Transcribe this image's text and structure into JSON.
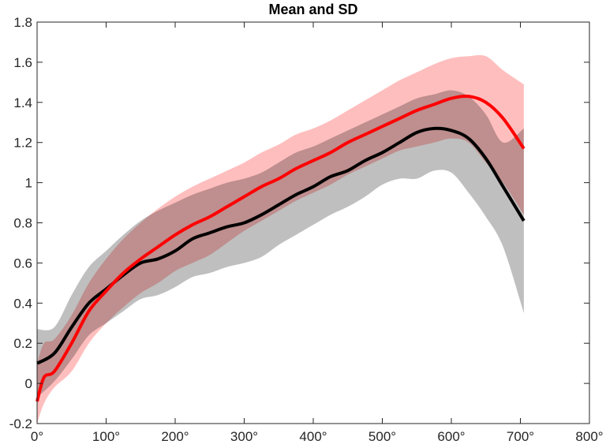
{
  "chart_data": {
    "type": "line",
    "title": "Mean and SD",
    "xlabel": "",
    "ylabel": "",
    "xlim": [
      0,
      800
    ],
    "ylim": [
      -0.2,
      1.8
    ],
    "xticks": [
      0,
      100,
      200,
      300,
      400,
      500,
      600,
      700,
      800
    ],
    "xtick_labels": [
      "0°",
      "100°",
      "200°",
      "300°",
      "400°",
      "500°",
      "600°",
      "700°",
      "800°"
    ],
    "yticks": [
      -0.2,
      0,
      0.2,
      0.4,
      0.6,
      0.8,
      1,
      1.2,
      1.4,
      1.6,
      1.8
    ],
    "ytick_labels": [
      "-0.2",
      "0",
      "0.2",
      "0.4",
      "0.6",
      "0.8",
      "1",
      "1.2",
      "1.4",
      "1.6",
      "1.8"
    ],
    "grid": false,
    "legend": "none",
    "series": [
      {
        "name": "black-mean",
        "color": "#000000",
        "band_color": "#bfbfbf",
        "x": [
          0,
          25,
          50,
          75,
          100,
          125,
          150,
          175,
          200,
          225,
          250,
          275,
          300,
          325,
          350,
          375,
          400,
          425,
          450,
          475,
          500,
          525,
          550,
          575,
          600,
          625,
          650,
          675,
          705
        ],
        "mean": [
          0.1,
          0.15,
          0.28,
          0.4,
          0.47,
          0.54,
          0.6,
          0.62,
          0.66,
          0.72,
          0.75,
          0.78,
          0.8,
          0.84,
          0.89,
          0.94,
          0.98,
          1.03,
          1.06,
          1.11,
          1.15,
          1.2,
          1.25,
          1.27,
          1.26,
          1.22,
          1.12,
          0.98,
          0.81
        ],
        "upper": [
          0.27,
          0.28,
          0.44,
          0.58,
          0.66,
          0.74,
          0.81,
          0.86,
          0.9,
          0.94,
          0.97,
          1.0,
          1.02,
          1.05,
          1.1,
          1.15,
          1.18,
          1.22,
          1.26,
          1.3,
          1.34,
          1.38,
          1.42,
          1.44,
          1.46,
          1.43,
          1.34,
          1.2,
          1.27
        ],
        "lower": [
          -0.07,
          0.01,
          0.12,
          0.24,
          0.3,
          0.36,
          0.42,
          0.44,
          0.48,
          0.53,
          0.55,
          0.58,
          0.6,
          0.63,
          0.69,
          0.74,
          0.79,
          0.84,
          0.88,
          0.93,
          0.99,
          1.02,
          1.02,
          1.06,
          1.05,
          0.95,
          0.83,
          0.68,
          0.35
        ]
      },
      {
        "name": "red-mean",
        "color": "#ff0000",
        "band_color": "#ffb3b3",
        "x": [
          0,
          10,
          25,
          50,
          75,
          100,
          125,
          150,
          175,
          200,
          225,
          250,
          275,
          300,
          325,
          350,
          375,
          400,
          425,
          450,
          475,
          500,
          525,
          550,
          575,
          600,
          625,
          650,
          675,
          705
        ],
        "mean": [
          -0.09,
          0.03,
          0.06,
          0.2,
          0.36,
          0.46,
          0.55,
          0.62,
          0.68,
          0.74,
          0.79,
          0.83,
          0.88,
          0.93,
          0.98,
          1.02,
          1.07,
          1.11,
          1.15,
          1.2,
          1.24,
          1.28,
          1.32,
          1.36,
          1.39,
          1.42,
          1.43,
          1.4,
          1.32,
          1.17
        ],
        "upper": [
          0.1,
          0.2,
          0.22,
          0.34,
          0.5,
          0.62,
          0.72,
          0.8,
          0.87,
          0.93,
          0.98,
          1.02,
          1.06,
          1.1,
          1.15,
          1.19,
          1.24,
          1.27,
          1.31,
          1.36,
          1.41,
          1.46,
          1.51,
          1.55,
          1.59,
          1.62,
          1.63,
          1.63,
          1.56,
          1.49
        ],
        "lower": [
          -0.2,
          -0.1,
          -0.02,
          0.06,
          0.2,
          0.3,
          0.38,
          0.45,
          0.5,
          0.56,
          0.6,
          0.64,
          0.7,
          0.76,
          0.81,
          0.86,
          0.91,
          0.95,
          0.99,
          1.04,
          1.08,
          1.12,
          1.16,
          1.18,
          1.2,
          1.22,
          1.2,
          1.1,
          1.0,
          0.84
        ]
      }
    ]
  }
}
